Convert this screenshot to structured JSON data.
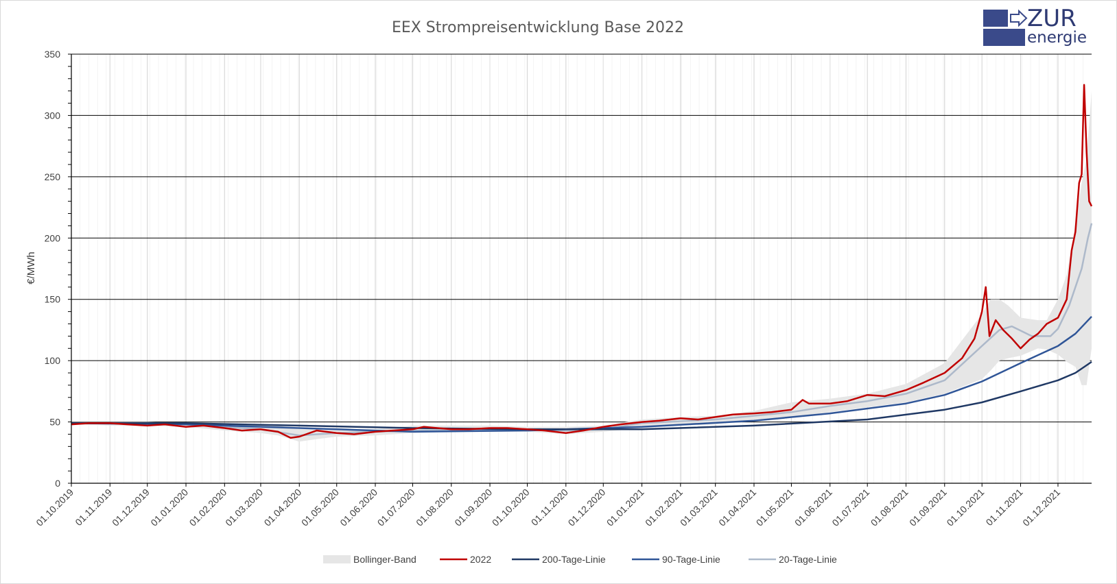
{
  "logo": {
    "word_top": "ZUR",
    "word_bottom": "energie",
    "color": "#2e3a73"
  },
  "chart_data": {
    "type": "line",
    "title": "EEX Strompreisentwicklung Base 2022",
    "xlabel": "",
    "ylabel": "€/MWh",
    "ylim": [
      0,
      350
    ],
    "yticks": [
      0,
      50,
      100,
      150,
      200,
      250,
      300,
      350
    ],
    "x_range": [
      "01.10.2019",
      "28.12.2021"
    ],
    "x_ticks": [
      "01.10.2019",
      "01.11.2019",
      "01.12.2019",
      "01.01.2020",
      "01.02.2020",
      "01.03.2020",
      "01.04.2020",
      "01.05.2020",
      "01.06.2020",
      "01.07.2020",
      "01.08.2020",
      "01.09.2020",
      "01.10.2020",
      "01.11.2020",
      "01.12.2020",
      "01.01.2021",
      "01.02.2021",
      "01.03.2021",
      "01.04.2021",
      "01.05.2021",
      "01.06.2021",
      "01.07.2021",
      "01.08.2021",
      "01.09.2021",
      "01.10.2021",
      "01.11.2021",
      "01.12.2021"
    ],
    "grid": true,
    "legend_position": "bottom",
    "band": {
      "name": "Bollinger-Band",
      "color": "#e6e6e6",
      "points": [
        {
          "x": "01.10.2019",
          "lo": 48,
          "hi": 50
        },
        {
          "x": "01.11.2019",
          "lo": 47,
          "hi": 50
        },
        {
          "x": "01.12.2019",
          "lo": 47,
          "hi": 50
        },
        {
          "x": "01.01.2020",
          "lo": 46,
          "hi": 49
        },
        {
          "x": "01.02.2020",
          "lo": 43,
          "hi": 48
        },
        {
          "x": "01.03.2020",
          "lo": 41,
          "hi": 47
        },
        {
          "x": "15.03.2020",
          "lo": 39,
          "hi": 47
        },
        {
          "x": "01.04.2020",
          "lo": 34,
          "hi": 44
        },
        {
          "x": "15.04.2020",
          "lo": 36,
          "hi": 44
        },
        {
          "x": "01.05.2020",
          "lo": 38,
          "hi": 45
        },
        {
          "x": "01.06.2020",
          "lo": 39,
          "hi": 44
        },
        {
          "x": "01.07.2020",
          "lo": 41,
          "hi": 47
        },
        {
          "x": "01.08.2020",
          "lo": 42,
          "hi": 47
        },
        {
          "x": "01.09.2020",
          "lo": 42,
          "hi": 47
        },
        {
          "x": "01.10.2020",
          "lo": 42,
          "hi": 46
        },
        {
          "x": "01.11.2020",
          "lo": 40,
          "hi": 46
        },
        {
          "x": "01.12.2020",
          "lo": 42,
          "hi": 47
        },
        {
          "x": "01.01.2021",
          "lo": 45,
          "hi": 52
        },
        {
          "x": "01.02.2021",
          "lo": 47,
          "hi": 54
        },
        {
          "x": "01.03.2021",
          "lo": 48,
          "hi": 55
        },
        {
          "x": "01.04.2021",
          "lo": 52,
          "hi": 59
        },
        {
          "x": "01.05.2021",
          "lo": 54,
          "hi": 66
        },
        {
          "x": "01.06.2021",
          "lo": 58,
          "hi": 69
        },
        {
          "x": "01.07.2021",
          "lo": 62,
          "hi": 73
        },
        {
          "x": "01.08.2021",
          "lo": 66,
          "hi": 81
        },
        {
          "x": "01.09.2021",
          "lo": 73,
          "hi": 98
        },
        {
          "x": "01.10.2021",
          "lo": 85,
          "hi": 138
        },
        {
          "x": "08.10.2021",
          "lo": 92,
          "hi": 150
        },
        {
          "x": "15.10.2021",
          "lo": 100,
          "hi": 150
        },
        {
          "x": "22.10.2021",
          "lo": 102,
          "hi": 145
        },
        {
          "x": "01.11.2021",
          "lo": 104,
          "hi": 135
        },
        {
          "x": "15.11.2021",
          "lo": 110,
          "hi": 133
        },
        {
          "x": "22.11.2021",
          "lo": 109,
          "hi": 133
        },
        {
          "x": "01.12.2021",
          "lo": 105,
          "hi": 150
        },
        {
          "x": "08.12.2021",
          "lo": 99,
          "hi": 170
        },
        {
          "x": "15.12.2021",
          "lo": 95,
          "hi": 210
        },
        {
          "x": "20.12.2021",
          "lo": 80,
          "hi": 245
        },
        {
          "x": "24.12.2021",
          "lo": 80,
          "hi": 265
        },
        {
          "x": "28.12.2021",
          "lo": 110,
          "hi": 320
        }
      ]
    },
    "series": [
      {
        "name": "2022",
        "color": "#c00000",
        "points": [
          {
            "x": "01.10.2019",
            "y": 48
          },
          {
            "x": "15.10.2019",
            "y": 49
          },
          {
            "x": "01.11.2019",
            "y": 49
          },
          {
            "x": "15.11.2019",
            "y": 48
          },
          {
            "x": "01.12.2019",
            "y": 47
          },
          {
            "x": "15.12.2019",
            "y": 48
          },
          {
            "x": "01.01.2020",
            "y": 46
          },
          {
            "x": "15.01.2020",
            "y": 47
          },
          {
            "x": "01.02.2020",
            "y": 45
          },
          {
            "x": "15.02.2020",
            "y": 43
          },
          {
            "x": "01.03.2020",
            "y": 44
          },
          {
            "x": "15.03.2020",
            "y": 42
          },
          {
            "x": "25.03.2020",
            "y": 37
          },
          {
            "x": "01.04.2020",
            "y": 38
          },
          {
            "x": "15.04.2020",
            "y": 43
          },
          {
            "x": "01.05.2020",
            "y": 41
          },
          {
            "x": "15.05.2020",
            "y": 40
          },
          {
            "x": "01.06.2020",
            "y": 42
          },
          {
            "x": "15.06.2020",
            "y": 43
          },
          {
            "x": "01.07.2020",
            "y": 44
          },
          {
            "x": "10.07.2020",
            "y": 46
          },
          {
            "x": "01.08.2020",
            "y": 44
          },
          {
            "x": "15.08.2020",
            "y": 44
          },
          {
            "x": "01.09.2020",
            "y": 45
          },
          {
            "x": "15.09.2020",
            "y": 45
          },
          {
            "x": "01.10.2020",
            "y": 44
          },
          {
            "x": "15.10.2020",
            "y": 43
          },
          {
            "x": "01.11.2020",
            "y": 41
          },
          {
            "x": "15.11.2020",
            "y": 43
          },
          {
            "x": "01.12.2020",
            "y": 46
          },
          {
            "x": "15.12.2020",
            "y": 48
          },
          {
            "x": "01.01.2021",
            "y": 50
          },
          {
            "x": "15.01.2021",
            "y": 51
          },
          {
            "x": "01.02.2021",
            "y": 53
          },
          {
            "x": "15.02.2021",
            "y": 52
          },
          {
            "x": "01.03.2021",
            "y": 54
          },
          {
            "x": "15.03.2021",
            "y": 56
          },
          {
            "x": "01.04.2021",
            "y": 57
          },
          {
            "x": "15.04.2021",
            "y": 58
          },
          {
            "x": "01.05.2021",
            "y": 60
          },
          {
            "x": "10.05.2021",
            "y": 68
          },
          {
            "x": "15.05.2021",
            "y": 65
          },
          {
            "x": "01.06.2021",
            "y": 65
          },
          {
            "x": "15.06.2021",
            "y": 67
          },
          {
            "x": "01.07.2021",
            "y": 72
          },
          {
            "x": "15.07.2021",
            "y": 71
          },
          {
            "x": "01.08.2021",
            "y": 76
          },
          {
            "x": "15.08.2021",
            "y": 82
          },
          {
            "x": "01.09.2021",
            "y": 90
          },
          {
            "x": "15.09.2021",
            "y": 102
          },
          {
            "x": "25.09.2021",
            "y": 118
          },
          {
            "x": "01.10.2021",
            "y": 140
          },
          {
            "x": "04.10.2021",
            "y": 160
          },
          {
            "x": "07.10.2021",
            "y": 120
          },
          {
            "x": "12.10.2021",
            "y": 133
          },
          {
            "x": "18.10.2021",
            "y": 125
          },
          {
            "x": "25.10.2021",
            "y": 118
          },
          {
            "x": "01.11.2021",
            "y": 110
          },
          {
            "x": "08.11.2021",
            "y": 117
          },
          {
            "x": "15.11.2021",
            "y": 122
          },
          {
            "x": "22.11.2021",
            "y": 130
          },
          {
            "x": "01.12.2021",
            "y": 135
          },
          {
            "x": "08.12.2021",
            "y": 150
          },
          {
            "x": "12.12.2021",
            "y": 190
          },
          {
            "x": "15.12.2021",
            "y": 205
          },
          {
            "x": "18.12.2021",
            "y": 245
          },
          {
            "x": "20.12.2021",
            "y": 252
          },
          {
            "x": "22.12.2021",
            "y": 325
          },
          {
            "x": "24.12.2021",
            "y": 270
          },
          {
            "x": "26.12.2021",
            "y": 230
          },
          {
            "x": "28.12.2021",
            "y": 226
          }
        ]
      },
      {
        "name": "200-Tage-Linie",
        "color": "#1f3864",
        "points": [
          {
            "x": "01.10.2019",
            "y": 49
          },
          {
            "x": "01.01.2020",
            "y": 49
          },
          {
            "x": "01.04.2020",
            "y": 47
          },
          {
            "x": "01.07.2020",
            "y": 45
          },
          {
            "x": "01.10.2020",
            "y": 44
          },
          {
            "x": "01.01.2021",
            "y": 44
          },
          {
            "x": "01.04.2021",
            "y": 47
          },
          {
            "x": "01.07.2021",
            "y": 52
          },
          {
            "x": "01.09.2021",
            "y": 60
          },
          {
            "x": "01.10.2021",
            "y": 66
          },
          {
            "x": "01.11.2021",
            "y": 75
          },
          {
            "x": "01.12.2021",
            "y": 84
          },
          {
            "x": "15.12.2021",
            "y": 90
          },
          {
            "x": "28.12.2021",
            "y": 99
          }
        ]
      },
      {
        "name": "90-Tage-Linie",
        "color": "#2f5597",
        "points": [
          {
            "x": "01.10.2019",
            "y": 49
          },
          {
            "x": "01.01.2020",
            "y": 48
          },
          {
            "x": "01.04.2020",
            "y": 45
          },
          {
            "x": "01.07.2020",
            "y": 42
          },
          {
            "x": "01.10.2020",
            "y": 43
          },
          {
            "x": "01.01.2021",
            "y": 46
          },
          {
            "x": "01.04.2021",
            "y": 51
          },
          {
            "x": "01.06.2021",
            "y": 57
          },
          {
            "x": "01.08.2021",
            "y": 65
          },
          {
            "x": "01.09.2021",
            "y": 72
          },
          {
            "x": "01.10.2021",
            "y": 83
          },
          {
            "x": "01.11.2021",
            "y": 98
          },
          {
            "x": "01.12.2021",
            "y": 112
          },
          {
            "x": "15.12.2021",
            "y": 122
          },
          {
            "x": "28.12.2021",
            "y": 136
          }
        ]
      },
      {
        "name": "20-Tage-Linie",
        "color": "#adb9ca",
        "points": [
          {
            "x": "01.10.2019",
            "y": 49
          },
          {
            "x": "01.01.2020",
            "y": 48
          },
          {
            "x": "01.03.2020",
            "y": 44
          },
          {
            "x": "01.04.2020",
            "y": 39
          },
          {
            "x": "01.05.2020",
            "y": 41
          },
          {
            "x": "01.07.2020",
            "y": 43
          },
          {
            "x": "01.10.2020",
            "y": 44
          },
          {
            "x": "01.11.2020",
            "y": 43
          },
          {
            "x": "01.12.2020",
            "y": 44
          },
          {
            "x": "01.01.2021",
            "y": 49
          },
          {
            "x": "01.03.2021",
            "y": 52
          },
          {
            "x": "01.05.2021",
            "y": 58
          },
          {
            "x": "01.06.2021",
            "y": 63
          },
          {
            "x": "01.07.2021",
            "y": 67
          },
          {
            "x": "01.08.2021",
            "y": 73
          },
          {
            "x": "01.09.2021",
            "y": 84
          },
          {
            "x": "01.10.2021",
            "y": 112
          },
          {
            "x": "15.10.2021",
            "y": 125
          },
          {
            "x": "25.10.2021",
            "y": 128
          },
          {
            "x": "10.11.2021",
            "y": 120
          },
          {
            "x": "25.11.2021",
            "y": 120
          },
          {
            "x": "01.12.2021",
            "y": 126
          },
          {
            "x": "10.12.2021",
            "y": 145
          },
          {
            "x": "20.12.2021",
            "y": 175
          },
          {
            "x": "25.12.2021",
            "y": 200
          },
          {
            "x": "28.12.2021",
            "y": 212
          }
        ]
      }
    ]
  }
}
